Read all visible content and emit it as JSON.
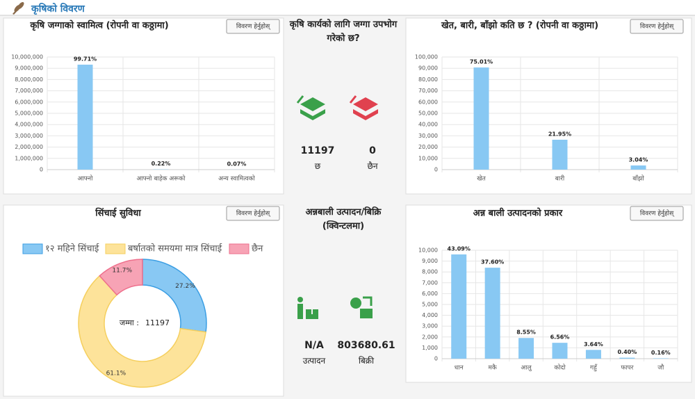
{
  "header": {
    "title": "कृषिको विवरण"
  },
  "chart_data": [
    {
      "type": "bar",
      "title": "कृषि जग्गाको स्वामित्व (रोपनी वा कठ्ठामा)",
      "button": "विवरण हेर्नुहोस्",
      "categories": [
        "आफ्नो",
        "आफ्नो बाहेक अरूको",
        "अन्य स्वामित्वको"
      ],
      "values": [
        9320000,
        20560,
        6540
      ],
      "share_labels": [
        "99.71%",
        "0.22%",
        "0.07%"
      ],
      "color": "#88c8f3",
      "ylim": [
        0,
        10000000
      ],
      "yticks": [
        0,
        {
          "value": 1000000,
          "label": "1,000,000"
        },
        {
          "value": 2000000,
          "label": "2,000,000"
        },
        {
          "value": 3000000,
          "label": "3,000,000"
        },
        {
          "value": 4000000,
          "label": "4,000,000"
        },
        {
          "value": 5000000,
          "label": "5,000,000"
        },
        {
          "value": 6000000,
          "label": "6,000,000"
        },
        {
          "value": 7000000,
          "label": "7,000,000"
        },
        {
          "value": 8000000,
          "label": "8,000,000"
        },
        {
          "value": 9000000,
          "label": "9,000,000"
        },
        {
          "value": 10000000,
          "label": "10,000,000"
        }
      ],
      "grid": true
    },
    {
      "type": "bar",
      "title": "खेत, बारी, बाँझो कति छ ? (रोपनी वा कठ्ठामा)",
      "button": "विवरण हेर्नुहोस्",
      "categories": [
        "खेत",
        "बारी",
        "बाँझो"
      ],
      "values": [
        90700,
        26540,
        3675
      ],
      "share_labels": [
        "75.01%",
        "21.95%",
        "3.04%"
      ],
      "color": "#88c8f3",
      "ylim": [
        0,
        100000
      ],
      "yticks": [
        0,
        {
          "value": 10000,
          "label": "10,000"
        },
        {
          "value": 20000,
          "label": "20,000"
        },
        {
          "value": 30000,
          "label": "30,000"
        },
        {
          "value": 40000,
          "label": "40,000"
        },
        {
          "value": 50000,
          "label": "50,000"
        },
        {
          "value": 60000,
          "label": "60,000"
        },
        {
          "value": 70000,
          "label": "70,000"
        },
        {
          "value": 80000,
          "label": "80,000"
        },
        {
          "value": 90000,
          "label": "90,000"
        },
        {
          "value": 100000,
          "label": "100,000"
        }
      ],
      "grid": true
    },
    {
      "type": "doughnut",
      "title": "सिंचाई सुविधा",
      "button": "विवरण हेर्नुहोस्",
      "categories": [
        "१२ महिने सिंचाई",
        "बर्षातको समयमा मात्र सिंचाई",
        "छैन"
      ],
      "values": [
        27.2,
        61.1,
        11.7
      ],
      "value_labels": [
        "27.2%",
        "61.1%",
        "11.7%"
      ],
      "colors": [
        "#88c8f3",
        "#fde39a",
        "#f7a3b5"
      ],
      "border_colors": [
        "#3b9ee3",
        "#f5cf5e",
        "#ee6f8c"
      ],
      "center_label": "जम्मा :",
      "total": 11197
    },
    {
      "type": "bar",
      "title": "अन्न बाली उत्पादनको प्रकार",
      "button": "विवरण हेर्नुहोस्",
      "categories": [
        "धान",
        "मकै",
        "आलु",
        "कोदो",
        "गहुँ",
        "फापर",
        "जौ"
      ],
      "values": [
        9615,
        8390,
        1908,
        1464,
        812,
        89,
        36
      ],
      "share_labels": [
        "43.09%",
        "37.60%",
        "8.55%",
        "6.56%",
        "3.64%",
        "0.40%",
        "0.16%"
      ],
      "color": "#88c8f3",
      "ylim": [
        0,
        10000
      ],
      "yticks": [
        0,
        {
          "value": 1000,
          "label": "1,000"
        },
        {
          "value": 2000,
          "label": "2,000"
        },
        {
          "value": 3000,
          "label": "3,000"
        },
        {
          "value": 4000,
          "label": "4,000"
        },
        {
          "value": 5000,
          "label": "5,000"
        },
        {
          "value": 6000,
          "label": "6,000"
        },
        {
          "value": 7000,
          "label": "7,000"
        },
        {
          "value": 8000,
          "label": "8,000"
        },
        {
          "value": 9000,
          "label": "9,000"
        },
        {
          "value": 10000,
          "label": "10,000"
        }
      ],
      "grid": true
    }
  ],
  "stats": [
    {
      "title": "कृषि कार्यको लागि जग्गा उपभोग गरेको छ?",
      "items": [
        {
          "value": "11197",
          "label": "छ"
        },
        {
          "value": "0",
          "label": "छैन"
        }
      ]
    },
    {
      "title": "अन्नबाली उत्पादन/बिक्रि (क्विन्टलमा)",
      "items": [
        {
          "value": "N/A",
          "label": "उत्पादन"
        },
        {
          "value": "803680.61",
          "label": "बिक्री"
        }
      ]
    }
  ]
}
